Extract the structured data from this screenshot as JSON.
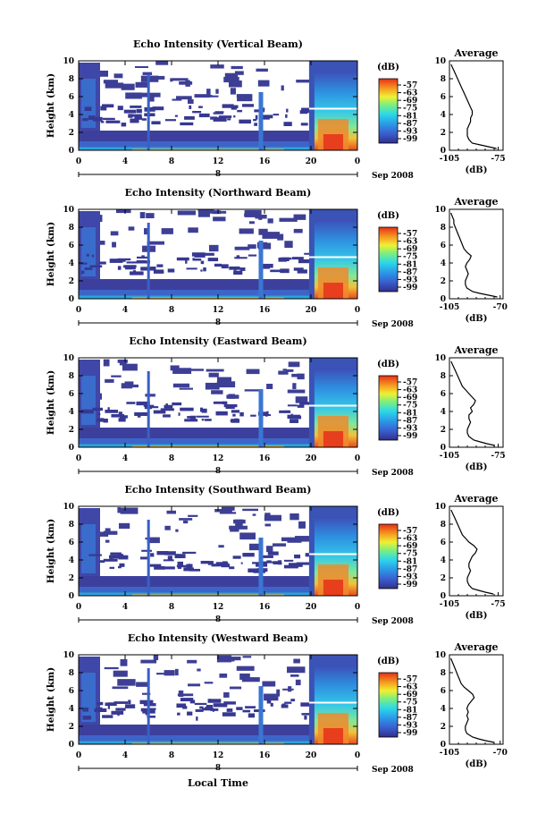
{
  "figure": {
    "bottom_xlabel": "Local Time"
  },
  "chart_data": [
    {
      "type": "heatmap",
      "title": "Echo Intensity (Vertical Beam)",
      "ylabel": "Height (km)",
      "xticks": [
        "0",
        "4",
        "8",
        "12",
        "16",
        "20",
        "0"
      ],
      "date_day": "8",
      "date_label": "Sep 2008",
      "ylim": [
        0,
        10
      ],
      "yticks": [
        "0",
        "2",
        "4",
        "6",
        "8",
        "10"
      ],
      "colorbar_unit": "(dB)",
      "colorbar_ticks": [
        "-57",
        "-63",
        "-69",
        "-75",
        "-81",
        "-87",
        "-93",
        "-99"
      ],
      "profile": {
        "title": "Average",
        "xlabel": "(dB)",
        "xticks": [
          "-105",
          "-75"
        ],
        "xlim": [
          -105,
          -72
        ],
        "heights": [
          0.2,
          0.4,
          0.6,
          0.8,
          1.2,
          1.6,
          2.0,
          2.4,
          2.8,
          3.2,
          3.6,
          4.0,
          4.4,
          4.8,
          5.2,
          5.6,
          6.0,
          6.4,
          6.8,
          7.2,
          7.6,
          8.0,
          8.4,
          8.8,
          9.2,
          9.6
        ],
        "values": [
          -76,
          -81,
          -86,
          -91,
          -93,
          -94,
          -94,
          -94,
          -93,
          -92,
          -92,
          -91,
          -91,
          -92,
          -93,
          -94,
          -95,
          -96,
          -97,
          -98,
          -99,
          -100,
          -101,
          -102,
          -103,
          -104
        ]
      }
    },
    {
      "type": "heatmap",
      "title": "Echo Intensity (Northward Beam)",
      "ylabel": "Height (km)",
      "xticks": [
        "0",
        "4",
        "8",
        "12",
        "16",
        "20",
        "0"
      ],
      "date_day": "8",
      "date_label": "Sep 2008",
      "ylim": [
        0,
        10
      ],
      "yticks": [
        "0",
        "2",
        "4",
        "6",
        "8",
        "10"
      ],
      "colorbar_unit": "(dB)",
      "colorbar_ticks": [
        "-57",
        "-63",
        "-69",
        "-75",
        "-81",
        "-87",
        "-93",
        "-99"
      ],
      "profile": {
        "title": "Average",
        "xlabel": "(dB)",
        "xticks": [
          "-105",
          "-70"
        ],
        "xlim": [
          -105,
          -68
        ],
        "heights": [
          0.2,
          0.4,
          0.6,
          0.8,
          1.2,
          1.6,
          2.0,
          2.4,
          2.8,
          3.2,
          3.6,
          4.0,
          4.4,
          4.8,
          5.2,
          5.6,
          6.0,
          6.4,
          6.8,
          7.2,
          7.6,
          8.0,
          8.4,
          8.8,
          9.2,
          9.6
        ],
        "values": [
          -72,
          -78,
          -84,
          -89,
          -93,
          -94,
          -94,
          -93,
          -92,
          -93,
          -94,
          -93,
          -91,
          -90,
          -93,
          -95,
          -96,
          -97,
          -98,
          -99,
          -100,
          -101,
          -102,
          -102,
          -103,
          -104
        ]
      }
    },
    {
      "type": "heatmap",
      "title": "Echo Intensity (Eastward Beam)",
      "ylabel": "Height (km)",
      "xticks": [
        "0",
        "4",
        "8",
        "12",
        "16",
        "20",
        "0"
      ],
      "date_day": "8",
      "date_label": "Sep 2008",
      "ylim": [
        0,
        10
      ],
      "yticks": [
        "0",
        "2",
        "4",
        "6",
        "8",
        "10"
      ],
      "colorbar_unit": "(dB)",
      "colorbar_ticks": [
        "-57",
        "-63",
        "-69",
        "-75",
        "-81",
        "-87",
        "-93",
        "-99"
      ],
      "profile": {
        "title": "Average",
        "xlabel": "(dB)",
        "xticks": [
          "-105",
          "-75"
        ],
        "xlim": [
          -105,
          -72
        ],
        "heights": [
          0.2,
          0.4,
          0.6,
          0.8,
          1.2,
          1.6,
          2.0,
          2.4,
          2.8,
          3.2,
          3.6,
          4.0,
          4.4,
          4.8,
          5.2,
          5.6,
          6.0,
          6.4,
          6.8,
          7.2,
          7.6,
          8.0,
          8.4,
          8.8,
          9.2,
          9.6
        ],
        "values": [
          -77,
          -82,
          -86,
          -90,
          -93,
          -94,
          -94,
          -93,
          -92,
          -93,
          -93,
          -91,
          -92,
          -90,
          -89,
          -91,
          -93,
          -95,
          -97,
          -98,
          -99,
          -100,
          -101,
          -102,
          -103,
          -104
        ]
      }
    },
    {
      "type": "heatmap",
      "title": "Echo Intensity (Southward Beam)",
      "ylabel": "Height (km)",
      "xticks": [
        "0",
        "4",
        "8",
        "12",
        "16",
        "20",
        "0"
      ],
      "date_day": "8",
      "date_label": "Sep 2008",
      "ylim": [
        0,
        10
      ],
      "yticks": [
        "0",
        "2",
        "4",
        "6",
        "8",
        "10"
      ],
      "colorbar_unit": "(dB)",
      "colorbar_ticks": [
        "-57",
        "-63",
        "-69",
        "-75",
        "-81",
        "-87",
        "-93",
        "-99"
      ],
      "profile": {
        "title": "Average",
        "xlabel": "(dB)",
        "xticks": [
          "-105",
          "-75"
        ],
        "xlim": [
          -105,
          -72
        ],
        "heights": [
          0.2,
          0.4,
          0.6,
          0.8,
          1.2,
          1.6,
          2.0,
          2.4,
          2.8,
          3.2,
          3.6,
          4.0,
          4.4,
          4.8,
          5.2,
          5.6,
          6.0,
          6.4,
          6.8,
          7.2,
          7.6,
          8.0,
          8.4,
          8.8,
          9.2,
          9.6
        ],
        "values": [
          -78,
          -83,
          -87,
          -91,
          -93,
          -94,
          -94,
          -93,
          -92,
          -93,
          -93,
          -92,
          -91,
          -89,
          -88,
          -90,
          -93,
          -95,
          -97,
          -98,
          -99,
          -100,
          -101,
          -102,
          -103,
          -104
        ]
      }
    },
    {
      "type": "heatmap",
      "title": "Echo Intensity (Westward Beam)",
      "ylabel": "Height (km)",
      "xticks": [
        "0",
        "4",
        "8",
        "12",
        "16",
        "20",
        "0"
      ],
      "date_day": "8",
      "date_label": "Sep 2008",
      "ylim": [
        0,
        10
      ],
      "yticks": [
        "0",
        "2",
        "4",
        "6",
        "8",
        "10"
      ],
      "colorbar_unit": "(dB)",
      "colorbar_ticks": [
        "-57",
        "-63",
        "-69",
        "-75",
        "-81",
        "-87",
        "-93",
        "-99"
      ],
      "profile": {
        "title": "Average",
        "xlabel": "(dB)",
        "xticks": [
          "-105",
          "-70"
        ],
        "xlim": [
          -105,
          -68
        ],
        "heights": [
          0.2,
          0.4,
          0.6,
          0.8,
          1.2,
          1.6,
          2.0,
          2.4,
          2.8,
          3.2,
          3.6,
          4.0,
          4.4,
          4.8,
          5.2,
          5.6,
          6.0,
          6.4,
          6.8,
          7.2,
          7.6,
          8.0,
          8.4,
          8.8,
          9.2,
          9.6
        ],
        "values": [
          -74,
          -80,
          -85,
          -89,
          -93,
          -94,
          -94,
          -93,
          -92,
          -93,
          -92,
          -93,
          -92,
          -90,
          -88,
          -89,
          -92,
          -95,
          -97,
          -98,
          -99,
          -100,
          -101,
          -102,
          -103,
          -104
        ]
      }
    }
  ]
}
